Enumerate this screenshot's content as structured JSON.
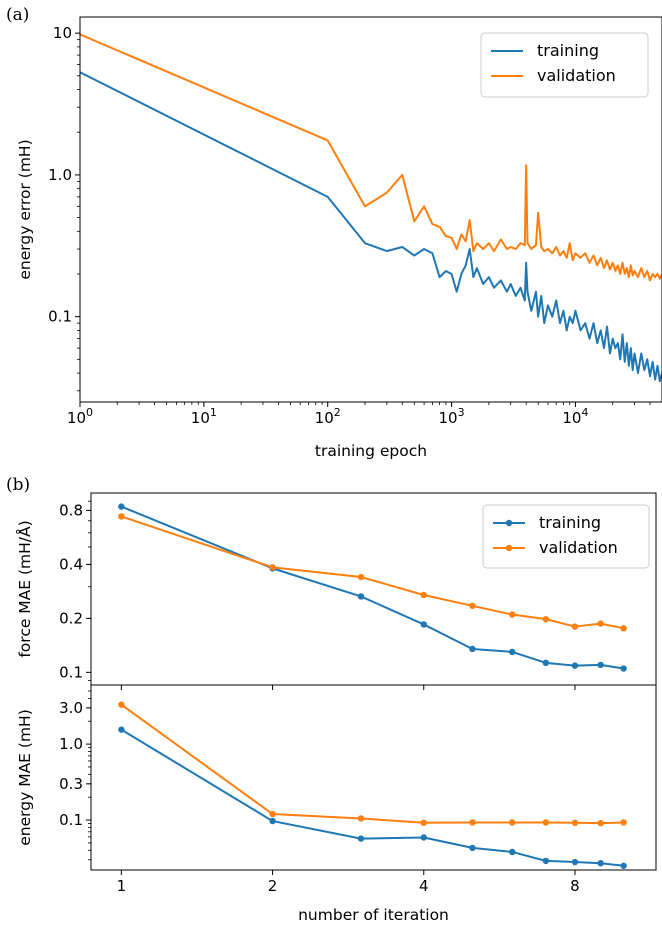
{
  "panel_a_letter": "(a)",
  "panel_b_letter": "(b)",
  "colors": {
    "training": "#1f77b4",
    "validation": "#ff7f0e"
  },
  "chart_data": [
    {
      "id": "a",
      "type": "line",
      "xlabel": "training epoch",
      "ylabel": "energy error (mH)",
      "xscale": "log",
      "yscale": "log",
      "xlim": [
        1,
        50000
      ],
      "ylim": [
        0.025,
        13
      ],
      "legend_position": "top-right",
      "grid": false,
      "x_ticks": [
        {
          "value": 1,
          "base": "10",
          "exp": "0"
        },
        {
          "value": 10,
          "base": "10",
          "exp": "1"
        },
        {
          "value": 100,
          "base": "10",
          "exp": "2"
        },
        {
          "value": 1000,
          "base": "10",
          "exp": "3"
        },
        {
          "value": 10000,
          "base": "10",
          "exp": "4"
        }
      ],
      "y_ticks": [
        {
          "value": 0.1,
          "label": "0.1"
        },
        {
          "value": 1,
          "label": "1.0"
        },
        {
          "value": 10,
          "label": "10"
        }
      ],
      "series": [
        {
          "name": "training",
          "x": [
            1,
            100,
            200,
            300,
            400,
            500,
            600,
            700,
            800,
            900,
            1000,
            1100,
            1200,
            1300,
            1400,
            1500,
            1600,
            1800,
            2000,
            2200,
            2500,
            2800,
            3000,
            3300,
            3600,
            3900,
            4000,
            4100,
            4400,
            4800,
            5000,
            5300,
            5600,
            6000,
            6500,
            7000,
            7500,
            8000,
            8500,
            9000,
            9500,
            10000,
            11000,
            12000,
            13000,
            14000,
            15000,
            16000,
            17000,
            18000,
            19000,
            20000,
            21000,
            22000,
            23000,
            24000,
            25000,
            26000,
            27000,
            28000,
            29000,
            30000,
            32000,
            34000,
            36000,
            38000,
            40000,
            42000,
            44000,
            46000,
            48000,
            50000
          ],
          "y": [
            5.3,
            0.7,
            0.33,
            0.29,
            0.31,
            0.27,
            0.3,
            0.28,
            0.19,
            0.21,
            0.2,
            0.15,
            0.2,
            0.23,
            0.3,
            0.19,
            0.22,
            0.17,
            0.19,
            0.16,
            0.18,
            0.15,
            0.17,
            0.14,
            0.16,
            0.13,
            0.24,
            0.15,
            0.11,
            0.15,
            0.1,
            0.14,
            0.09,
            0.12,
            0.1,
            0.13,
            0.09,
            0.11,
            0.08,
            0.1,
            0.09,
            0.11,
            0.08,
            0.09,
            0.07,
            0.09,
            0.065,
            0.08,
            0.06,
            0.085,
            0.055,
            0.07,
            0.06,
            0.065,
            0.05,
            0.075,
            0.048,
            0.065,
            0.045,
            0.06,
            0.042,
            0.055,
            0.04,
            0.055,
            0.042,
            0.05,
            0.038,
            0.048,
            0.036,
            0.045,
            0.035,
            0.04
          ]
        },
        {
          "name": "validation",
          "x": [
            1,
            100,
            200,
            300,
            400,
            500,
            600,
            700,
            800,
            900,
            1000,
            1100,
            1200,
            1300,
            1400,
            1500,
            1600,
            1800,
            2000,
            2200,
            2500,
            2800,
            3000,
            3300,
            3600,
            3900,
            4000,
            4100,
            4400,
            4800,
            5000,
            5300,
            5600,
            6000,
            6500,
            7000,
            7500,
            8000,
            8500,
            9000,
            9500,
            10000,
            11000,
            12000,
            13000,
            14000,
            15000,
            16000,
            17000,
            18000,
            19000,
            20000,
            21000,
            22000,
            23000,
            24000,
            25000,
            26000,
            27000,
            28000,
            29000,
            30000,
            32000,
            34000,
            36000,
            38000,
            40000,
            42000,
            44000,
            46000,
            48000,
            50000
          ],
          "y": [
            9.8,
            1.75,
            0.6,
            0.75,
            1.0,
            0.47,
            0.6,
            0.45,
            0.43,
            0.37,
            0.36,
            0.3,
            0.38,
            0.34,
            0.48,
            0.29,
            0.33,
            0.3,
            0.33,
            0.29,
            0.35,
            0.3,
            0.31,
            0.3,
            0.33,
            0.32,
            1.17,
            0.33,
            0.3,
            0.32,
            0.54,
            0.31,
            0.29,
            0.3,
            0.28,
            0.31,
            0.27,
            0.29,
            0.26,
            0.33,
            0.25,
            0.28,
            0.26,
            0.28,
            0.24,
            0.27,
            0.23,
            0.26,
            0.22,
            0.25,
            0.215,
            0.24,
            0.21,
            0.23,
            0.2,
            0.24,
            0.2,
            0.22,
            0.19,
            0.23,
            0.195,
            0.21,
            0.19,
            0.22,
            0.19,
            0.21,
            0.18,
            0.2,
            0.19,
            0.2,
            0.185,
            0.2
          ]
        }
      ]
    },
    {
      "id": "b-top",
      "type": "line",
      "xlabel": "",
      "ylabel": "force MAE (mH/Å)",
      "xscale": "log2",
      "yscale": "log",
      "xlim": [
        0.87,
        11.6
      ],
      "ylim": [
        0.085,
        1.0
      ],
      "legend_position": "top-right",
      "grid": false,
      "y_ticks": [
        {
          "value": 0.1,
          "label": "0.1"
        },
        {
          "value": 0.2,
          "label": "0.2"
        },
        {
          "value": 0.4,
          "label": "0.4"
        },
        {
          "value": 0.8,
          "label": "0.8"
        }
      ],
      "series": [
        {
          "name": "training",
          "x": [
            1,
            2,
            3,
            4,
            5,
            6,
            7,
            8,
            9,
            10
          ],
          "y": [
            0.84,
            0.38,
            0.265,
            0.185,
            0.135,
            0.13,
            0.113,
            0.109,
            0.11,
            0.105
          ]
        },
        {
          "name": "validation",
          "x": [
            1,
            2,
            3,
            4,
            5,
            6,
            7,
            8,
            9,
            10
          ],
          "y": [
            0.74,
            0.385,
            0.34,
            0.27,
            0.235,
            0.21,
            0.198,
            0.18,
            0.187,
            0.176
          ]
        }
      ]
    },
    {
      "id": "b-bottom",
      "type": "line",
      "xlabel": "number of iteration",
      "ylabel": "energy MAE (mH)",
      "xscale": "log2",
      "yscale": "log",
      "xlim": [
        0.87,
        11.6
      ],
      "ylim": [
        0.022,
        6.0
      ],
      "grid": false,
      "x_ticks": [
        {
          "value": 1,
          "label": "1"
        },
        {
          "value": 2,
          "label": "2"
        },
        {
          "value": 4,
          "label": "4"
        },
        {
          "value": 8,
          "label": "8"
        }
      ],
      "y_ticks": [
        {
          "value": 0.1,
          "label": "0.1"
        },
        {
          "value": 0.3,
          "label": "0.3"
        },
        {
          "value": 1.0,
          "label": "1.0"
        },
        {
          "value": 3.0,
          "label": "3.0"
        }
      ],
      "series": [
        {
          "name": "training",
          "x": [
            1,
            2,
            3,
            4,
            5,
            6,
            7,
            8,
            9,
            10
          ],
          "y": [
            1.55,
            0.097,
            0.057,
            0.059,
            0.043,
            0.038,
            0.029,
            0.028,
            0.027,
            0.025
          ]
        },
        {
          "name": "validation",
          "x": [
            1,
            2,
            3,
            4,
            5,
            6,
            7,
            8,
            9,
            10
          ],
          "y": [
            3.3,
            0.12,
            0.105,
            0.092,
            0.093,
            0.093,
            0.093,
            0.092,
            0.091,
            0.093
          ]
        }
      ]
    }
  ]
}
